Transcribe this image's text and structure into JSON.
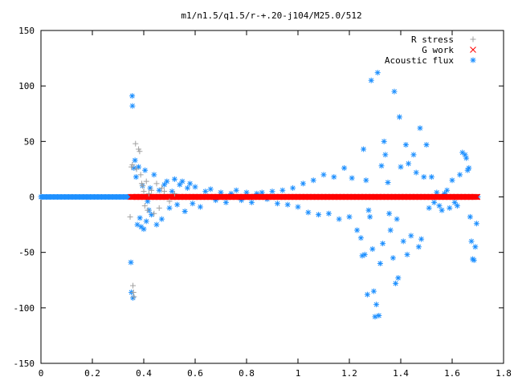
{
  "chart_data": {
    "type": "scatter",
    "title": "m1/n1.5/q1.5/r-+.20-j104/M25.0/512",
    "xlabel": "",
    "ylabel": "",
    "xlim": [
      0,
      1.8
    ],
    "ylim": [
      -150,
      150
    ],
    "x_ticks": [
      "0",
      "0.2",
      "0.4",
      "0.6",
      "0.8",
      "1",
      "1.2",
      "1.4",
      "1.6",
      "1.8"
    ],
    "y_ticks": [
      "150",
      "100",
      "50",
      "0",
      "-50",
      "-100",
      "-150"
    ],
    "grid": false,
    "legend_position": "top-right",
    "series": [
      {
        "name": "R stress",
        "marker": "plus",
        "color": "#a0a0a0",
        "points": [
          [
            0.347,
            -18
          ],
          [
            0.352,
            27
          ],
          [
            0.356,
            29
          ],
          [
            0.358,
            -80
          ],
          [
            0.36,
            -86
          ],
          [
            0.362,
            -90
          ],
          [
            0.368,
            48
          ],
          [
            0.372,
            25
          ],
          [
            0.38,
            43
          ],
          [
            0.384,
            41
          ],
          [
            0.388,
            20
          ],
          [
            0.392,
            12
          ],
          [
            0.396,
            10
          ],
          [
            0.4,
            5
          ],
          [
            0.404,
            -8
          ],
          [
            0.41,
            14
          ],
          [
            0.415,
            -12
          ],
          [
            0.42,
            3
          ],
          [
            0.43,
            6
          ],
          [
            0.44,
            -15
          ],
          [
            0.45,
            12
          ],
          [
            0.46,
            -10
          ],
          [
            0.47,
            8
          ],
          [
            0.48,
            5
          ],
          [
            0.5,
            -4
          ],
          [
            0.52,
            3
          ]
        ]
      },
      {
        "name": "G work",
        "marker": "cross",
        "color": "#ff0000",
        "band": [
          0.35,
          1.7
        ]
      },
      {
        "name": "Acoustic flux",
        "marker": "star",
        "color": "#1e90ff",
        "baseline": [
          0.0,
          0.347
        ],
        "points": [
          [
            0.355,
            91
          ],
          [
            0.356,
            82
          ],
          [
            0.35,
            -59
          ],
          [
            0.352,
            -86
          ],
          [
            0.358,
            -91
          ],
          [
            0.362,
            26
          ],
          [
            0.366,
            33
          ],
          [
            0.37,
            18
          ],
          [
            0.375,
            -25
          ],
          [
            0.38,
            27
          ],
          [
            0.385,
            -19
          ],
          [
            0.39,
            -27
          ],
          [
            0.395,
            10
          ],
          [
            0.4,
            -29
          ],
          [
            0.405,
            24
          ],
          [
            0.41,
            -22
          ],
          [
            0.415,
            -4
          ],
          [
            0.42,
            -12
          ],
          [
            0.425,
            8
          ],
          [
            0.43,
            -16
          ],
          [
            0.44,
            20
          ],
          [
            0.45,
            -25
          ],
          [
            0.46,
            6
          ],
          [
            0.47,
            -20
          ],
          [
            0.48,
            11
          ],
          [
            0.49,
            14
          ],
          [
            0.5,
            -10
          ],
          [
            0.51,
            5
          ],
          [
            0.52,
            16
          ],
          [
            0.53,
            -7
          ],
          [
            0.54,
            11
          ],
          [
            0.55,
            14
          ],
          [
            0.56,
            -13
          ],
          [
            0.57,
            8
          ],
          [
            0.58,
            12
          ],
          [
            0.59,
            -6
          ],
          [
            0.6,
            9
          ],
          [
            0.62,
            -9
          ],
          [
            0.64,
            5
          ],
          [
            0.66,
            7
          ],
          [
            0.68,
            -3
          ],
          [
            0.7,
            4
          ],
          [
            0.72,
            -5
          ],
          [
            0.74,
            3
          ],
          [
            0.76,
            6
          ],
          [
            0.78,
            -3
          ],
          [
            0.8,
            4
          ],
          [
            0.82,
            -5
          ],
          [
            0.84,
            3
          ],
          [
            0.86,
            4
          ],
          [
            0.88,
            -2
          ],
          [
            0.9,
            5
          ],
          [
            0.92,
            -6
          ],
          [
            0.94,
            6
          ],
          [
            0.96,
            -7
          ],
          [
            0.98,
            8
          ],
          [
            1.0,
            -9
          ],
          [
            1.02,
            12
          ],
          [
            1.04,
            -14
          ],
          [
            1.06,
            15
          ],
          [
            1.08,
            -16
          ],
          [
            1.1,
            20
          ],
          [
            1.12,
            -15
          ],
          [
            1.14,
            18
          ],
          [
            1.16,
            -20
          ],
          [
            1.18,
            26
          ],
          [
            1.2,
            -18
          ],
          [
            1.21,
            17
          ],
          [
            1.23,
            -30
          ],
          [
            1.245,
            -37
          ],
          [
            1.25,
            -53
          ],
          [
            1.255,
            43
          ],
          [
            1.26,
            -52
          ],
          [
            1.265,
            15
          ],
          [
            1.27,
            -88
          ],
          [
            1.275,
            -12
          ],
          [
            1.28,
            -18
          ],
          [
            1.285,
            105
          ],
          [
            1.29,
            -47
          ],
          [
            1.295,
            -85
          ],
          [
            1.3,
            -108
          ],
          [
            1.305,
            -97
          ],
          [
            1.31,
            112
          ],
          [
            1.315,
            -107
          ],
          [
            1.32,
            -60
          ],
          [
            1.325,
            28
          ],
          [
            1.33,
            -42
          ],
          [
            1.335,
            50
          ],
          [
            1.34,
            38
          ],
          [
            1.35,
            13
          ],
          [
            1.355,
            -15
          ],
          [
            1.36,
            -30
          ],
          [
            1.37,
            -55
          ],
          [
            1.375,
            95
          ],
          [
            1.38,
            -78
          ],
          [
            1.385,
            -20
          ],
          [
            1.39,
            -73
          ],
          [
            1.395,
            72
          ],
          [
            1.4,
            27
          ],
          [
            1.41,
            -40
          ],
          [
            1.42,
            47
          ],
          [
            1.425,
            -52
          ],
          [
            1.43,
            30
          ],
          [
            1.44,
            -35
          ],
          [
            1.45,
            38
          ],
          [
            1.46,
            22
          ],
          [
            1.47,
            -45
          ],
          [
            1.475,
            62
          ],
          [
            1.48,
            -38
          ],
          [
            1.49,
            18
          ],
          [
            1.5,
            47
          ],
          [
            1.51,
            -10
          ],
          [
            1.52,
            18
          ],
          [
            1.53,
            -5
          ],
          [
            1.54,
            4
          ],
          [
            1.55,
            -8
          ],
          [
            1.56,
            -12
          ],
          [
            1.57,
            3
          ],
          [
            1.58,
            6
          ],
          [
            1.59,
            -10
          ],
          [
            1.6,
            15
          ],
          [
            1.61,
            -5
          ],
          [
            1.62,
            -8
          ],
          [
            1.63,
            20
          ],
          [
            1.64,
            40
          ],
          [
            1.65,
            38
          ],
          [
            1.655,
            35
          ],
          [
            1.66,
            24
          ],
          [
            1.665,
            26
          ],
          [
            1.67,
            -18
          ],
          [
            1.675,
            -40
          ],
          [
            1.68,
            -56
          ],
          [
            1.685,
            -57
          ],
          [
            1.69,
            -45
          ],
          [
            1.695,
            -24
          ],
          [
            1.7,
            0
          ]
        ]
      }
    ]
  }
}
